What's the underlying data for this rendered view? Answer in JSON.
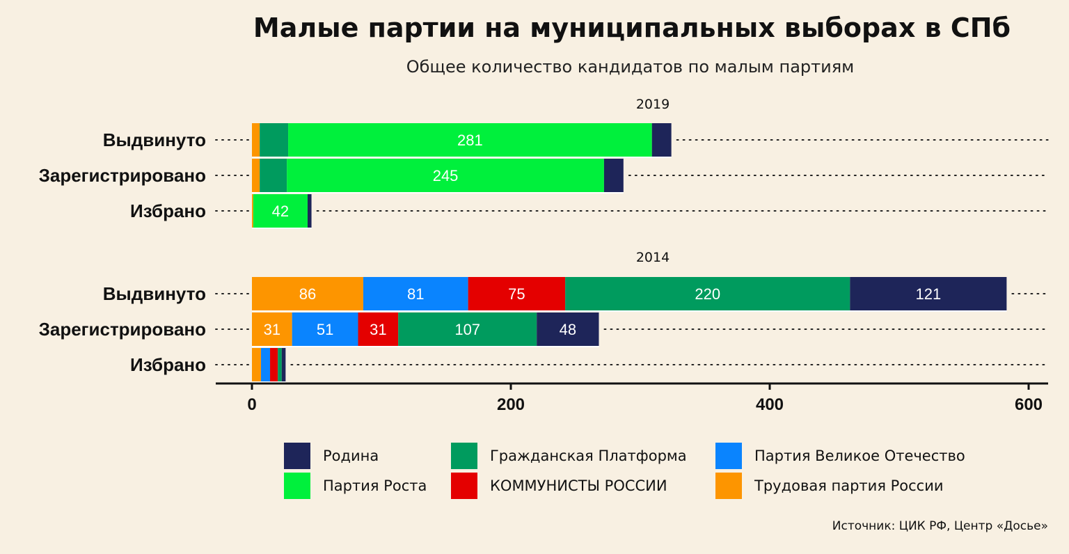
{
  "title": "Малые партии на муниципальных выборах в СПб",
  "subtitle": "Общее количество кандидатов по малым партиям",
  "source": "Источник: ЦИК РФ, Центр «Досье»",
  "colors": {
    "Трудовая партия России": "#fd9500",
    "Партия Великое Отечество": "#0a84fe",
    "КОММУНИСТЫ РОССИИ": "#e40000",
    "Гражданская Платформа": "#009b5e",
    "Партия Роста": "#00f03c",
    "Родина": "#1e2559"
  },
  "legend": [
    "Родина",
    "Гражданская Платформа",
    "Партия Великое Отечество",
    "Партия Роста",
    "КОММУНИСТЫ РОССИИ",
    "Трудовая партия России"
  ],
  "chart_data": {
    "type": "bar",
    "orientation": "horizontal",
    "stacked": true,
    "xlim": [
      0,
      600
    ],
    "xticks": [
      "0",
      "200",
      "400",
      "600"
    ],
    "series_order": [
      "Трудовая партия России",
      "Партия Великое Отечество",
      "КОММУНИСТЫ РОССИИ",
      "Гражданская Платформа",
      "Партия Роста",
      "Родина"
    ],
    "panels": [
      {
        "label": "2019",
        "categories": [
          "Выдвинуто",
          "Зарегистрировано",
          "Избрано"
        ],
        "series": [
          {
            "name": "Трудовая партия России",
            "values": [
              6,
              6,
              1
            ]
          },
          {
            "name": "Партия Великое Отечество",
            "values": [
              0,
              0,
              0
            ]
          },
          {
            "name": "КОММУНИСТЫ РОССИИ",
            "values": [
              0,
              0,
              0
            ]
          },
          {
            "name": "Гражданская Платформа",
            "values": [
              22,
              21,
              0
            ]
          },
          {
            "name": "Партия Роста",
            "values": [
              281,
              245,
              42
            ]
          },
          {
            "name": "Родина",
            "values": [
              15,
              15,
              3
            ]
          }
        ]
      },
      {
        "label": "2014",
        "categories": [
          "Выдвинуто",
          "Зарегистрировано",
          "Избрано"
        ],
        "series": [
          {
            "name": "Трудовая партия России",
            "values": [
              86,
              31,
              7
            ]
          },
          {
            "name": "Партия Великое Отечество",
            "values": [
              81,
              51,
              7
            ]
          },
          {
            "name": "КОММУНИСТЫ РОССИИ",
            "values": [
              75,
              31,
              6
            ]
          },
          {
            "name": "Гражданская Платформа",
            "values": [
              220,
              107,
              3
            ]
          },
          {
            "name": "Партия Роста",
            "values": [
              0,
              0,
              0
            ]
          },
          {
            "name": "Родина",
            "values": [
              121,
              48,
              3
            ]
          }
        ]
      }
    ]
  }
}
